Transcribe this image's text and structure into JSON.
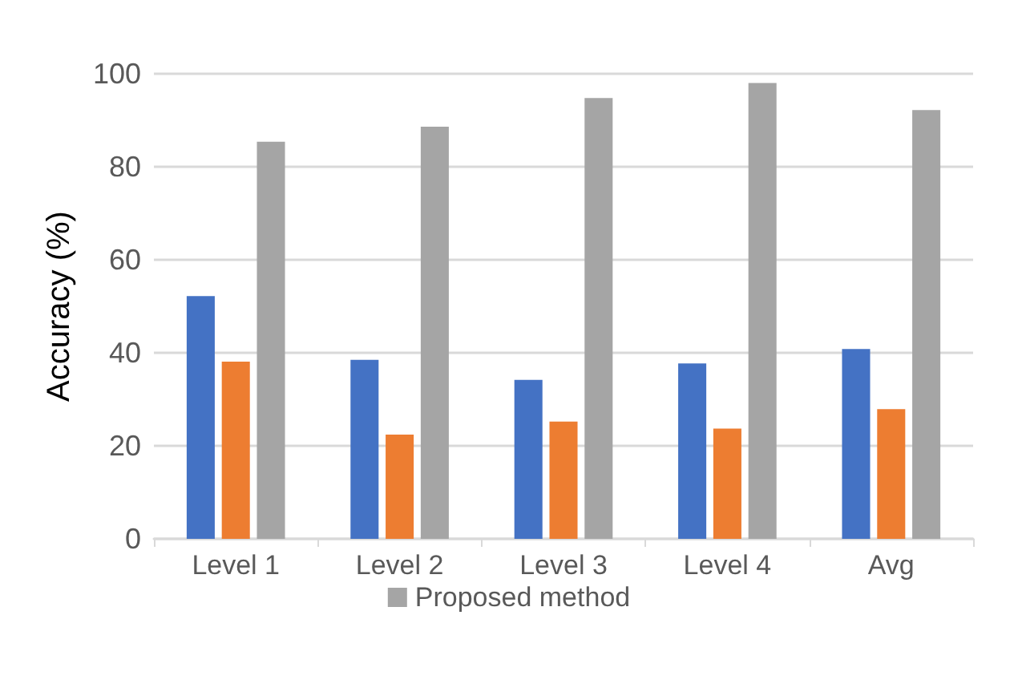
{
  "chart_data": {
    "type": "bar",
    "ylabel": "Accuracy (%)",
    "categories": [
      "Level 1",
      "Level 2",
      "Level 3",
      "Level 4",
      "Avg"
    ],
    "series": [
      {
        "color": "#4472c4",
        "values": [
          52.2,
          38.5,
          34.2,
          37.7,
          40.8
        ]
      },
      {
        "color": "#ed7d31",
        "values": [
          38.1,
          22.4,
          25.2,
          23.7,
          27.9
        ]
      },
      {
        "name": "Proposed method",
        "color": "#a5a5a5",
        "values": [
          85.4,
          88.6,
          94.8,
          98.0,
          92.2
        ]
      }
    ],
    "ylim": [
      0,
      100
    ],
    "yticks": [
      0,
      20,
      40,
      60,
      80,
      100
    ],
    "grid": "y",
    "legend": "bottom"
  }
}
